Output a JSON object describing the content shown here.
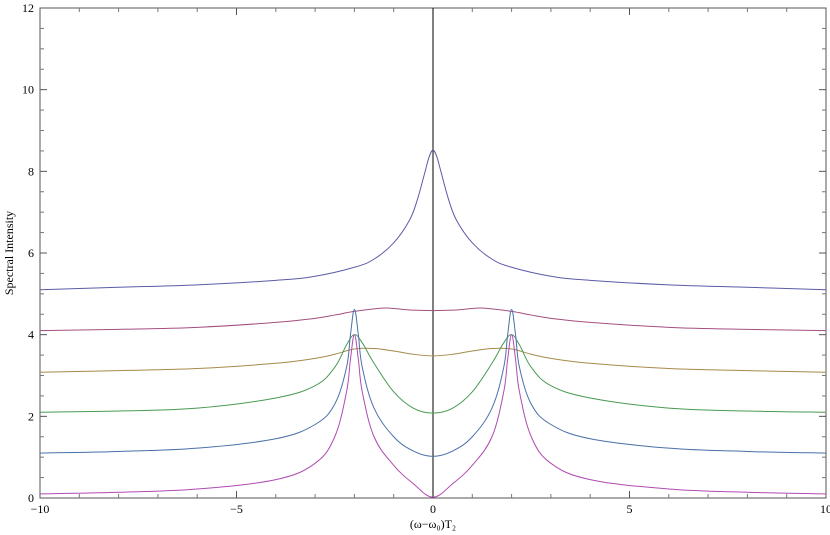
{
  "chart_data": {
    "type": "line",
    "title": "",
    "xlabel": "(ω−ω₀)T₂",
    "ylabel": "Spectral Intensity",
    "xlim": [
      -10,
      10
    ],
    "ylim": [
      0,
      12
    ],
    "x_ticks": [
      -10,
      -5,
      0,
      5,
      10
    ],
    "x_tick_labels": [
      "−10",
      "−5",
      "0",
      "5",
      "10"
    ],
    "y_ticks": [
      0,
      2,
      4,
      6,
      8,
      10,
      12
    ],
    "y_tick_labels": [
      "0",
      "2",
      "4",
      "6",
      "8",
      "10",
      "12"
    ],
    "grid": false,
    "legend": "none",
    "series": [
      {
        "color": "#5b5ba8",
        "x": [
          -10,
          -8,
          -6,
          -4,
          -3,
          -2,
          -1.5,
          -1,
          -0.6,
          -0.4,
          -0.2,
          -0.1,
          0,
          0.1,
          0.2,
          0.4,
          0.6,
          1,
          1.5,
          2,
          3,
          4,
          6,
          8,
          10
        ],
        "y": [
          5.1,
          5.16,
          5.22,
          5.33,
          5.43,
          5.65,
          5.85,
          6.25,
          6.8,
          7.3,
          8.0,
          8.35,
          8.52,
          8.35,
          8.0,
          7.3,
          6.8,
          6.25,
          5.85,
          5.65,
          5.43,
          5.33,
          5.22,
          5.16,
          5.1
        ]
      },
      {
        "color": "#a44e80",
        "x": [
          -10,
          -8,
          -6,
          -4,
          -3,
          -2.5,
          -2,
          -1.3,
          -1,
          -0.5,
          0,
          0.5,
          1,
          1.3,
          2,
          2.5,
          3,
          4,
          6,
          8,
          10
        ],
        "y": [
          4.1,
          4.13,
          4.18,
          4.3,
          4.4,
          4.48,
          4.57,
          4.65,
          4.64,
          4.6,
          4.59,
          4.6,
          4.64,
          4.65,
          4.57,
          4.48,
          4.4,
          4.3,
          4.18,
          4.13,
          4.1
        ]
      },
      {
        "color": "#a78a4a",
        "x": [
          -10,
          -8,
          -6,
          -4,
          -3,
          -2.5,
          -2,
          -1.5,
          -1,
          -0.5,
          0,
          0.5,
          1,
          1.5,
          2,
          2.5,
          3,
          4,
          6,
          8,
          10
        ],
        "y": [
          3.08,
          3.12,
          3.17,
          3.3,
          3.42,
          3.52,
          3.65,
          3.66,
          3.6,
          3.52,
          3.48,
          3.52,
          3.6,
          3.66,
          3.65,
          3.52,
          3.42,
          3.3,
          3.17,
          3.12,
          3.08
        ]
      },
      {
        "color": "#4a9a52",
        "x": [
          -10,
          -8,
          -6,
          -4,
          -3,
          -2.5,
          -2.2,
          -2,
          -1.8,
          -1.5,
          -1,
          -0.5,
          0,
          0.5,
          1,
          1.5,
          1.8,
          2,
          2.2,
          2.5,
          3,
          4,
          6,
          8,
          10
        ],
        "y": [
          2.1,
          2.13,
          2.2,
          2.45,
          2.75,
          3.2,
          3.75,
          4.0,
          3.8,
          3.3,
          2.6,
          2.2,
          2.08,
          2.2,
          2.6,
          3.3,
          3.8,
          4.0,
          3.75,
          3.2,
          2.75,
          2.45,
          2.2,
          2.13,
          2.1
        ]
      },
      {
        "color": "#4a70a8",
        "x": [
          -10,
          -8,
          -6,
          -4,
          -3,
          -2.5,
          -2.2,
          -2.1,
          -2,
          -1.9,
          -1.8,
          -1.5,
          -1,
          -0.5,
          0,
          0.5,
          1,
          1.5,
          1.8,
          1.9,
          2,
          2.1,
          2.2,
          2.5,
          3,
          4,
          6,
          8,
          10
        ],
        "y": [
          1.1,
          1.14,
          1.22,
          1.45,
          1.8,
          2.3,
          3.2,
          4.0,
          4.62,
          4.0,
          3.2,
          2.2,
          1.5,
          1.15,
          1.02,
          1.15,
          1.5,
          2.2,
          3.2,
          4.0,
          4.62,
          4.0,
          3.2,
          2.3,
          1.8,
          1.45,
          1.22,
          1.14,
          1.1
        ]
      },
      {
        "color": "#b04bb0",
        "x": [
          -10,
          -8,
          -6,
          -4,
          -3,
          -2.5,
          -2.2,
          -2.1,
          -2,
          -1.9,
          -1.8,
          -1.5,
          -1,
          -0.5,
          0,
          0.5,
          1,
          1.5,
          1.8,
          1.9,
          2,
          2.1,
          2.2,
          2.5,
          3,
          4,
          6,
          8,
          10
        ],
        "y": [
          0.1,
          0.14,
          0.22,
          0.45,
          0.85,
          1.5,
          2.6,
          3.4,
          4.0,
          3.4,
          2.6,
          1.5,
          0.8,
          0.35,
          0.02,
          0.35,
          0.8,
          1.5,
          2.6,
          3.4,
          4.0,
          3.4,
          2.6,
          1.5,
          0.85,
          0.45,
          0.22,
          0.14,
          0.1
        ]
      }
    ]
  }
}
